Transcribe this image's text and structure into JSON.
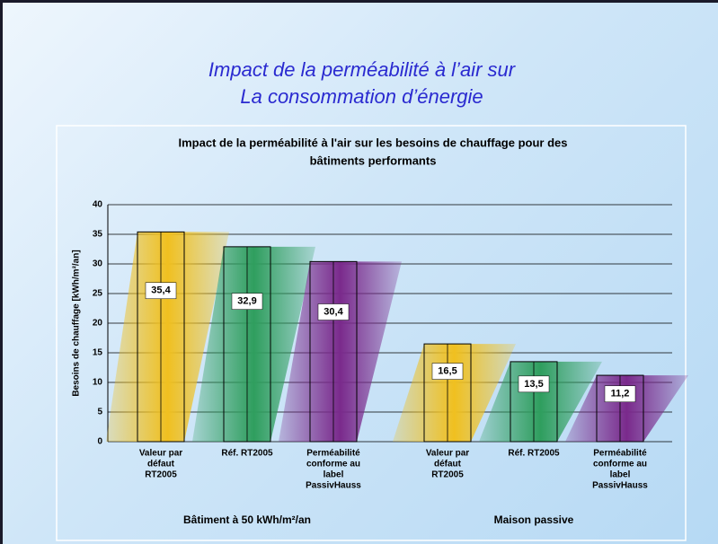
{
  "header": {
    "title_lines": [
      "Impact de la perméabilité à l’air sur",
      "La consommation d’énergie"
    ]
  },
  "chart_data": {
    "type": "bar",
    "title": "Impact de la perméabilité à l'air sur les besoins de chauffage pour des bâtiments performants",
    "y_label": "Besoins de chauffage [kWh/m²/an]",
    "categories": [
      "Valeur par défaut RT2005",
      "Réf. RT2005",
      "Perméabilité conforme au label PassivHauss",
      "Valeur par défaut RT2005",
      "Réf. RT2005",
      "Perméabilité conforme au label PassivHauss"
    ],
    "groups": [
      "Bâtiment à 50 kWh/m²/an",
      "Maison passive"
    ],
    "values": [
      35.4,
      32.9,
      30.4,
      16.5,
      13.5,
      11.2
    ],
    "value_labels": [
      "35,4",
      "32,9",
      "30,4",
      "16,5",
      "13,5",
      "11,2"
    ],
    "colors": [
      "#f0c020",
      "#2f9e5e",
      "#7a2a8c",
      "#f0c020",
      "#2f9e5e",
      "#7a2a8c"
    ],
    "ylim": [
      0,
      40
    ],
    "yticks": [
      0,
      5,
      10,
      15,
      20,
      25,
      30,
      35,
      40
    ],
    "grid": true
  }
}
